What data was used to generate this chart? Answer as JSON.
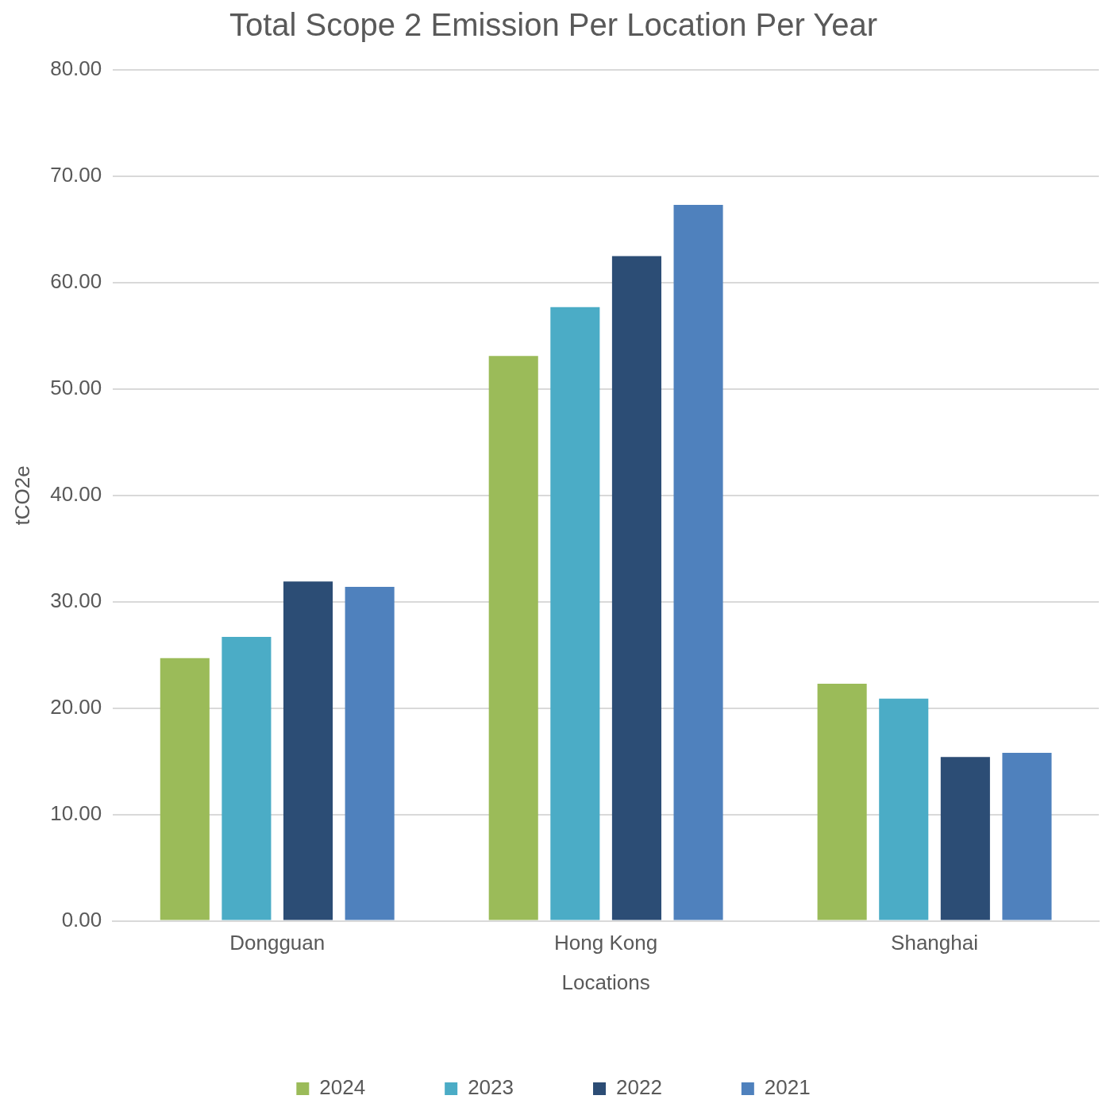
{
  "chart_data": {
    "type": "bar",
    "title": "Total Scope 2 Emission Per Location Per Year",
    "xlabel": "Locations",
    "ylabel": "tCO2e",
    "categories": [
      "Dongguan",
      "Hong Kong",
      "Shanghai"
    ],
    "series": [
      {
        "name": "2024",
        "color": "#9bbb59",
        "values": [
          24.7,
          53.1,
          22.3
        ]
      },
      {
        "name": "2023",
        "color": "#4bacc6",
        "values": [
          26.7,
          57.7,
          20.9
        ]
      },
      {
        "name": "2022",
        "color": "#2c4d75",
        "values": [
          31.9,
          62.5,
          15.4
        ]
      },
      {
        "name": "2021",
        "color": "#4f81bd",
        "values": [
          31.4,
          67.3,
          15.8
        ]
      }
    ],
    "ylim": [
      0,
      80
    ],
    "yticks": [
      {
        "value": 0,
        "label": "0.00"
      },
      {
        "value": 10,
        "label": "10.00"
      },
      {
        "value": 20,
        "label": "20.00"
      },
      {
        "value": 30,
        "label": "30.00"
      },
      {
        "value": 40,
        "label": "40.00"
      },
      {
        "value": 50,
        "label": "50.00"
      },
      {
        "value": 60,
        "label": "60.00"
      },
      {
        "value": 70,
        "label": "70.00"
      },
      {
        "value": 80,
        "label": "80.00"
      }
    ],
    "grid": "y",
    "legend": "bottom"
  }
}
